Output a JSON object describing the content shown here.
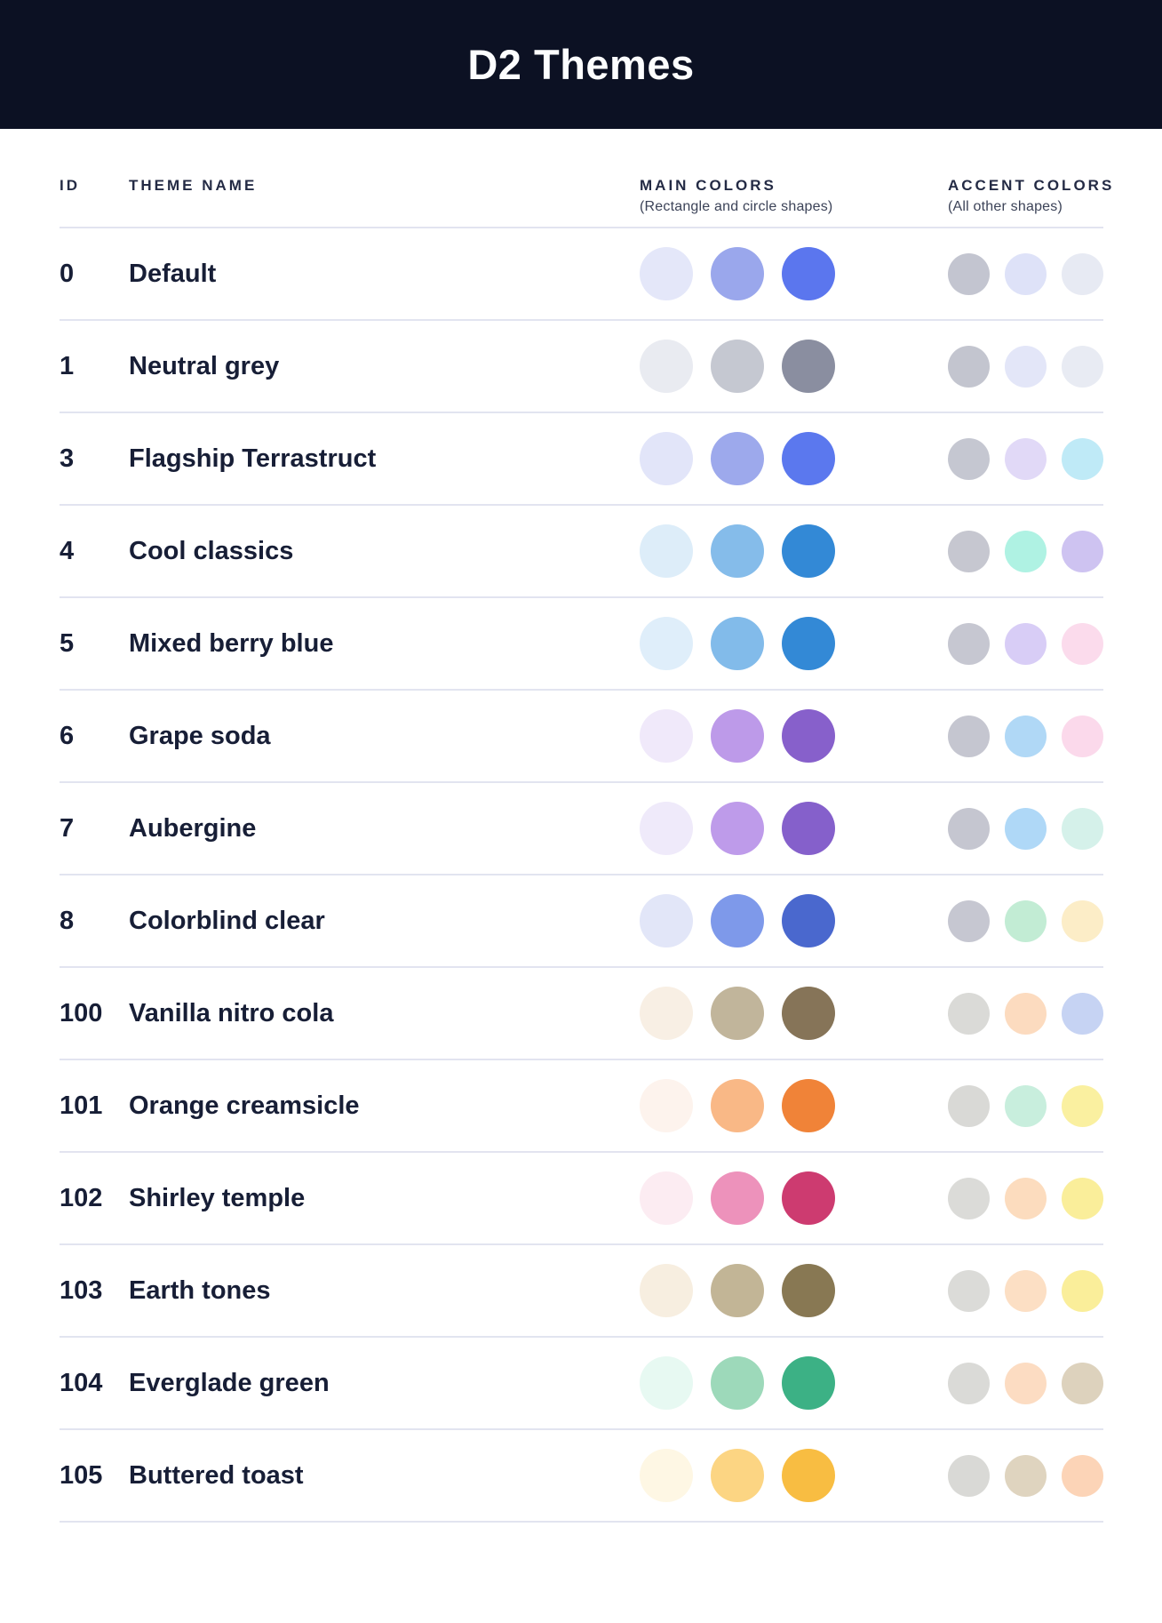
{
  "header": {
    "title": "D2 Themes",
    "background_color": "#0C1123",
    "title_color": "#FCFDFE"
  },
  "table": {
    "divider_color": "#E2E4F0",
    "columns": {
      "id_label": "ID",
      "name_label": "THEME NAME",
      "main_label": "MAIN COLORS",
      "main_sublabel": "(Rectangle and circle shapes)",
      "accent_label": "ACCENT COLORS",
      "accent_sublabel": "(All other shapes)"
    },
    "rows": [
      {
        "id": "0",
        "name": "Default",
        "main_colors": [
          "#E4E7F9",
          "#9AA7EC",
          "#5B76EE"
        ],
        "accent_colors": [
          "#C3C5D0",
          "#DEE2F8",
          "#E7EAF3"
        ]
      },
      {
        "id": "1",
        "name": "Neutral grey",
        "main_colors": [
          "#E9EBF1",
          "#C5C8D1",
          "#8A8EA0"
        ],
        "accent_colors": [
          "#C3C5CF",
          "#E3E6F8",
          "#E8EBF3"
        ]
      },
      {
        "id": "3",
        "name": "Flagship Terrastruct",
        "main_colors": [
          "#E2E5F9",
          "#9DA9EC",
          "#5B78EE"
        ],
        "accent_colors": [
          "#C5C7D1",
          "#E1D9F7",
          "#BFEAF7"
        ]
      },
      {
        "id": "4",
        "name": "Cool classics",
        "main_colors": [
          "#DDEDF9",
          "#85BCEA",
          "#3389D6"
        ],
        "accent_colors": [
          "#C6C7D0",
          "#AFF2E3",
          "#CEC3F1"
        ]
      },
      {
        "id": "5",
        "name": "Mixed berry blue",
        "main_colors": [
          "#DFEEFA",
          "#82BBEA",
          "#3389D6"
        ],
        "accent_colors": [
          "#C6C7D1",
          "#D8CDF6",
          "#FBDBEC"
        ]
      },
      {
        "id": "6",
        "name": "Grape soda",
        "main_colors": [
          "#F0E9FA",
          "#BD9AE9",
          "#8760CB"
        ],
        "accent_colors": [
          "#C5C6D0",
          "#B0D8F6",
          "#FBD9EB"
        ]
      },
      {
        "id": "7",
        "name": "Aubergine",
        "main_colors": [
          "#EFEAFA",
          "#BE9BEA",
          "#8560CB"
        ],
        "accent_colors": [
          "#C5C6D0",
          "#AFD8F7",
          "#D5F1EA"
        ]
      },
      {
        "id": "8",
        "name": "Colorblind clear",
        "main_colors": [
          "#E2E6F8",
          "#7E99EA",
          "#4A68CE"
        ],
        "accent_colors": [
          "#C6C7D1",
          "#C2ECD4",
          "#FCEDC7"
        ]
      },
      {
        "id": "100",
        "name": "Vanilla nitro cola",
        "main_colors": [
          "#F8EFE4",
          "#C1B59B",
          "#867458"
        ],
        "accent_colors": [
          "#DADAD7",
          "#FCDBBF",
          "#C6D3F3"
        ]
      },
      {
        "id": "101",
        "name": "Orange creamsicle",
        "main_colors": [
          "#FDF3ED",
          "#F9B886",
          "#F08338"
        ],
        "accent_colors": [
          "#D9D9D6",
          "#C8EEDD",
          "#FAF0A0"
        ]
      },
      {
        "id": "102",
        "name": "Shirley temple",
        "main_colors": [
          "#FCECF2",
          "#ED92BB",
          "#CD3B70"
        ],
        "accent_colors": [
          "#DBDBD8",
          "#FCDCBE",
          "#FAEE9A"
        ]
      },
      {
        "id": "103",
        "name": "Earth tones",
        "main_colors": [
          "#F7EEE0",
          "#C2B596",
          "#887853"
        ],
        "accent_colors": [
          "#DBDBD8",
          "#FCDFC4",
          "#FAEE9A"
        ]
      },
      {
        "id": "104",
        "name": "Everglade green",
        "main_colors": [
          "#E7F9F2",
          "#9DD9BA",
          "#3CB185"
        ],
        "accent_colors": [
          "#DADAD7",
          "#FCDCC2",
          "#DDD2BD"
        ]
      },
      {
        "id": "105",
        "name": "Buttered toast",
        "main_colors": [
          "#FEF7E4",
          "#FCD583",
          "#F8BD42"
        ],
        "accent_colors": [
          "#D9D9D6",
          "#DFD4BF",
          "#FCD4B7"
        ]
      }
    ]
  }
}
